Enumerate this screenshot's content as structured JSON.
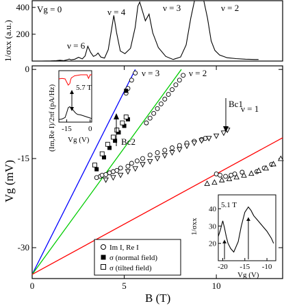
{
  "chart_data": [
    {
      "panel": "top",
      "type": "line",
      "ylabel": "1/σxx (a.u.)",
      "ylim": [
        0,
        450
      ],
      "yticks": [
        200,
        400
      ],
      "xlim": [
        0,
        13.5
      ],
      "annotations": [
        "Vg = 0",
        "ν = 6",
        "ν = 4",
        "ν = 3",
        "ν = 2"
      ],
      "peaks": [
        {
          "x": 1.5,
          "y": 6
        },
        {
          "x": 2.0,
          "y": 15
        },
        {
          "x": 2.5,
          "y": 28
        },
        {
          "x": 3.0,
          "y": 110
        },
        {
          "x": 3.55,
          "y": 60
        },
        {
          "x": 4.4,
          "y": 340
        },
        {
          "x": 5.8,
          "y": 440
        },
        {
          "x": 6.3,
          "y": 350
        },
        {
          "x": 9.0,
          "y": 600
        }
      ],
      "x": [
        0.0,
        0.5,
        1.0,
        1.3,
        1.5,
        1.7,
        1.9,
        2.0,
        2.1,
        2.3,
        2.5,
        2.7,
        2.85,
        3.0,
        3.15,
        3.3,
        3.45,
        3.55,
        3.7,
        3.9,
        4.1,
        4.25,
        4.4,
        4.55,
        4.75,
        5.0,
        5.3,
        5.55,
        5.7,
        5.8,
        5.95,
        6.1,
        6.3,
        6.5,
        6.8,
        7.2,
        7.6,
        8.0,
        8.3,
        8.55,
        8.75,
        9.25,
        9.45,
        9.65,
        9.85,
        10.1,
        10.5,
        11.0,
        11.5,
        12.0,
        12.2
      ],
      "y": [
        0,
        0,
        1,
        3,
        6,
        3,
        10,
        15,
        9,
        14,
        28,
        16,
        38,
        110,
        65,
        35,
        45,
        60,
        30,
        22,
        85,
        210,
        340,
        210,
        75,
        55,
        95,
        250,
        410,
        440,
        370,
        300,
        350,
        210,
        100,
        35,
        12,
        30,
        120,
        320,
        560,
        560,
        320,
        150,
        80,
        45,
        25,
        18,
        14,
        12,
        12
      ]
    },
    {
      "panel": "main",
      "type": "scatter",
      "xlabel": "B (T)",
      "ylabel": "Vg (mV)",
      "xlim": [
        0,
        13.6
      ],
      "ylim": [
        -35.2,
        0.6
      ],
      "xticks": [
        0,
        5,
        10
      ],
      "yticks": [
        0,
        -15,
        -30
      ],
      "lines": [
        {
          "label": "ν = 3",
          "color": "#0000ff",
          "x": [
            0,
            5.6
          ],
          "y": [
            -34.5,
            0
          ]
        },
        {
          "label": "ν = 2",
          "color": "#00cc00",
          "x": [
            0,
            8.1
          ],
          "y": [
            -34.5,
            0
          ]
        },
        {
          "label": "ν = 1",
          "color": "#ff0000",
          "x": [
            0,
            13.6
          ],
          "y": [
            -34.5,
            -11.5
          ]
        }
      ],
      "annotations": [
        "ν = 3",
        "ν = 2",
        "ν = 1",
        "Bc1",
        "Bc2"
      ],
      "legend": {
        "position": "bottom-center",
        "entries": [
          "Im I, Re I",
          "σ (normal field)",
          "σ (tilted field)"
        ]
      },
      "series": [
        {
          "name": "Im I, Re I",
          "marker": "open-circle",
          "x": [
            5.1,
            5.2,
            5.4,
            5.6,
            6.2,
            6.4,
            6.6,
            6.8,
            7.0,
            7.2,
            7.4,
            7.6,
            7.8,
            8.0,
            8.2,
            3.5,
            3.7,
            3.8,
            4.0,
            4.2,
            4.4,
            4.6,
            4.8,
            5.2,
            5.4,
            5.7,
            6.0,
            6.4,
            6.8,
            7.2,
            7.6,
            8.0,
            8.4,
            8.8,
            9.2,
            9.4,
            10.0,
            10.2,
            10.5,
            10.8,
            11.0,
            11.4,
            12.2,
            12.6,
            13.0
          ],
          "y": [
            -4.0,
            -3.2,
            -1.8,
            -0.6,
            -9.0,
            -8.2,
            -7.4,
            -6.6,
            -5.8,
            -5.0,
            -4.2,
            -3.4,
            -2.6,
            -1.8,
            -1.0,
            -18.2,
            -18.0,
            -17.8,
            -17.7,
            -17.4,
            -17.2,
            -17.0,
            -16.6,
            -16.3,
            -15.8,
            -15.4,
            -15.0,
            -14.4,
            -14.0,
            -13.6,
            -13.2,
            -12.8,
            -12.4,
            -12.1,
            -11.8,
            -11.6,
            -17.6,
            -17.8,
            -18.0,
            -17.8,
            -17.6,
            -17.3,
            -17.2,
            -16.6,
            -16.0
          ]
        },
        {
          "name": "σ (normal field)",
          "marker": "filled-square",
          "x": [
            3.5,
            3.9,
            4.2,
            4.5,
            4.7,
            5.0,
            5.2,
            5.1
          ],
          "y": [
            -16.8,
            -14.8,
            -13.2,
            -12.0,
            -10.6,
            -9.5,
            -8.4,
            -3.6
          ],
          "note": "square markers visible along ν=2 line"
        },
        {
          "name": "σ (tilted field)",
          "marker": "open-square",
          "x": [
            3.4,
            3.8,
            4.1,
            4.4,
            4.6,
            4.9,
            5.1
          ],
          "y": [
            -16.1,
            -14.2,
            -12.6,
            -11.4,
            -10.2,
            -9.0,
            -8.0
          ]
        },
        {
          "name": "triangles",
          "marker": "triangle-down",
          "x": [
            4.0,
            4.4,
            4.8,
            5.2,
            5.6,
            6.0,
            6.4,
            6.8,
            7.2,
            7.6,
            8.0,
            8.4,
            8.8,
            9.2,
            9.6,
            10.0,
            10.4,
            10.6
          ],
          "y": [
            -18.6,
            -18.2,
            -17.8,
            -17.2,
            -16.7,
            -16.0,
            -15.5,
            -15.0,
            -14.5,
            -14.0,
            -13.5,
            -12.9,
            -12.4,
            -12.0,
            -11.6,
            -11.2,
            -10.7,
            -10.2
          ]
        },
        {
          "name": "triangles-up",
          "marker": "triangle-up",
          "x": [
            9.5,
            9.9,
            10.3,
            10.7,
            11.1,
            11.5,
            11.9,
            12.3,
            12.7,
            13.1,
            13.5
          ],
          "y": [
            -19.2,
            -19.0,
            -18.6,
            -18.4,
            -18.1,
            -17.8,
            -17.5,
            -17.0,
            -16.6,
            -15.9,
            -15.0
          ]
        }
      ]
    },
    {
      "panel": "inset-left",
      "type": "line",
      "ylabel": "(Im,Re I)/2πf (pA/Hz)",
      "xlabel": "Vg (V)",
      "xlim": [
        -20,
        1
      ],
      "xticks": [
        -15,
        0
      ],
      "annotation": "5.7 T",
      "series": [
        {
          "name": "Re",
          "color": "#ff0000",
          "x": [
            -20,
            -18,
            -16,
            -15,
            -14,
            -13,
            -12.5,
            -12,
            -11,
            -10,
            -8,
            -6,
            -4,
            -2,
            -1,
            0,
            1
          ],
          "y": [
            0.84,
            0.85,
            0.84,
            0.78,
            0.72,
            0.75,
            0.82,
            0.86,
            0.88,
            0.9,
            0.91,
            0.92,
            0.92,
            0.92,
            0.85,
            0.92,
            0.92
          ]
        },
        {
          "name": "Im",
          "color": "#000000",
          "x": [
            -20,
            -18,
            -16,
            -15,
            -14,
            -13,
            -12,
            -11,
            -10,
            -9,
            -8,
            -6,
            -4,
            -2,
            0,
            1
          ],
          "y": [
            0.05,
            0.06,
            0.09,
            0.18,
            0.28,
            0.3,
            0.27,
            0.24,
            0.2,
            0.17,
            0.15,
            0.14,
            0.12,
            0.1,
            0.08,
            0.07
          ]
        }
      ]
    },
    {
      "panel": "inset-right",
      "type": "line",
      "ylabel": "1/σxx",
      "xlabel": "Vg (V)",
      "xlim": [
        -21,
        -8
      ],
      "ylim": [
        10,
        48
      ],
      "xticks": [
        -20,
        -15,
        -10
      ],
      "yticks": [
        20,
        30,
        40
      ],
      "annotation": "5.1 T",
      "x": [
        -21,
        -20.5,
        -20,
        -19.6,
        -19.2,
        -18.8,
        -18.2,
        -17.5,
        -16.5,
        -15.8,
        -15.0,
        -14.2,
        -13.6,
        -13.0,
        -12.0,
        -11.0,
        -10.0,
        -9.0,
        -8.5
      ],
      "y": [
        24,
        28,
        33,
        29,
        24,
        20,
        17,
        15,
        21,
        30,
        38,
        41,
        39,
        36,
        33,
        30,
        27,
        23,
        20
      ]
    }
  ]
}
